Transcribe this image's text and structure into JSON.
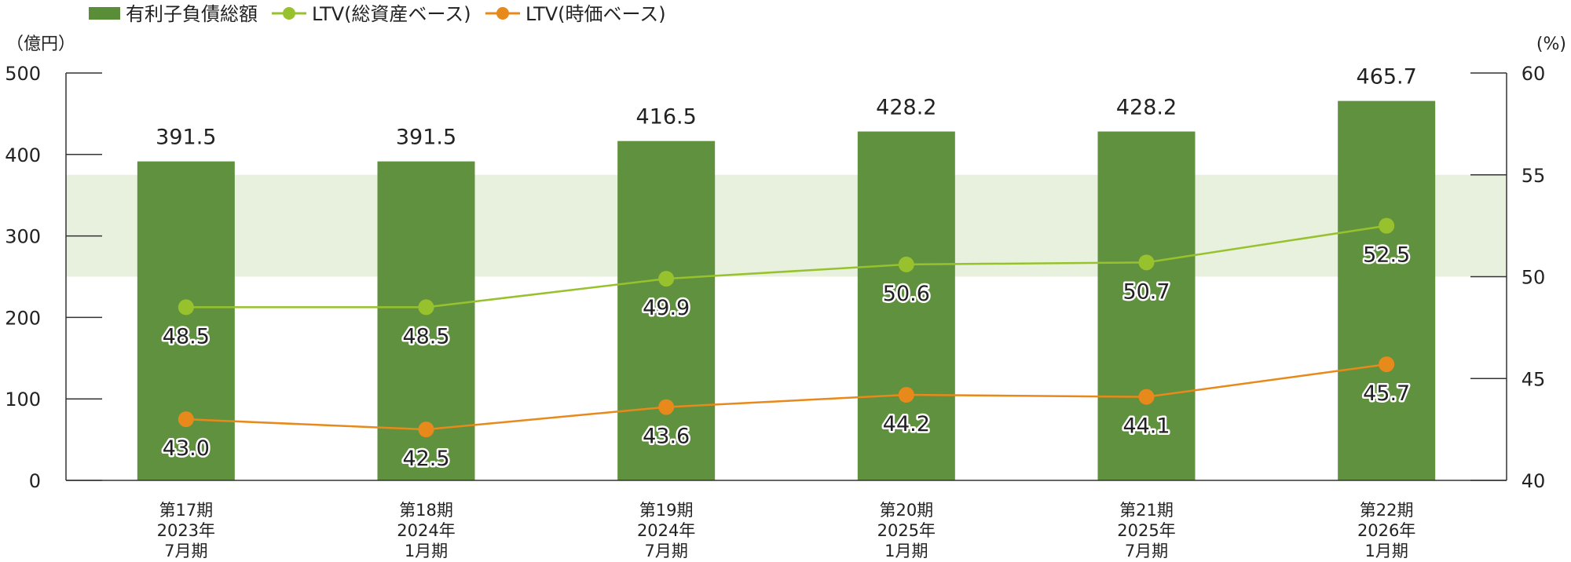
{
  "legend": {
    "debt": "有利子負債総額",
    "ltv_assets": "LTV(総資産ベース)",
    "ltv_market": "LTV(時価ベース)"
  },
  "units": {
    "left": "（億円）",
    "right": "(%)"
  },
  "colors": {
    "bar": "#5a8d37",
    "ltv_assets": "#97c22e",
    "ltv_market": "#e8891b",
    "band": "#e8f1dd",
    "axis": "#333333"
  },
  "chart_data": {
    "type": "bar",
    "categories": [
      [
        "第17期",
        "2023年",
        "7月期"
      ],
      [
        "第18期",
        "2024年",
        "1月期"
      ],
      [
        "第19期",
        "2024年",
        "7月期"
      ],
      [
        "第20期",
        "2025年",
        "1月期"
      ],
      [
        "第21期",
        "2025年",
        "7月期"
      ],
      [
        "第22期",
        "2026年",
        "1月期"
      ]
    ],
    "bar_series": {
      "name": "有利子負債総額",
      "values": [
        391.5,
        391.5,
        416.5,
        428.2,
        428.2,
        465.7
      ],
      "labels": [
        "391.5",
        "391.5",
        "416.5",
        "428.2",
        "428.2",
        "465.7"
      ]
    },
    "line_series": [
      {
        "name": "LTV(総資産ベース)",
        "values": [
          48.5,
          48.5,
          49.9,
          50.6,
          50.7,
          52.5
        ],
        "labels": [
          "48.5",
          "48.5",
          "49.9",
          "50.6",
          "50.7",
          "52.5"
        ]
      },
      {
        "name": "LTV(時価ベース)",
        "values": [
          43.0,
          42.5,
          43.6,
          44.2,
          44.1,
          45.7
        ],
        "labels": [
          "43.0",
          "42.5",
          "43.6",
          "44.2",
          "44.1",
          "45.7"
        ]
      }
    ],
    "y_left": {
      "range": [
        0,
        500
      ],
      "ticks": [
        "0",
        "100",
        "200",
        "300",
        "400",
        "500"
      ],
      "tick_values": [
        0,
        100,
        200,
        300,
        400,
        500
      ]
    },
    "y_right": {
      "range": [
        40,
        60
      ],
      "ticks": [
        "40",
        "45",
        "50",
        "55",
        "60"
      ],
      "tick_values": [
        40,
        45,
        50,
        55,
        60
      ]
    },
    "band_right_range": [
      50,
      55
    ],
    "legend_position": "top-left"
  }
}
